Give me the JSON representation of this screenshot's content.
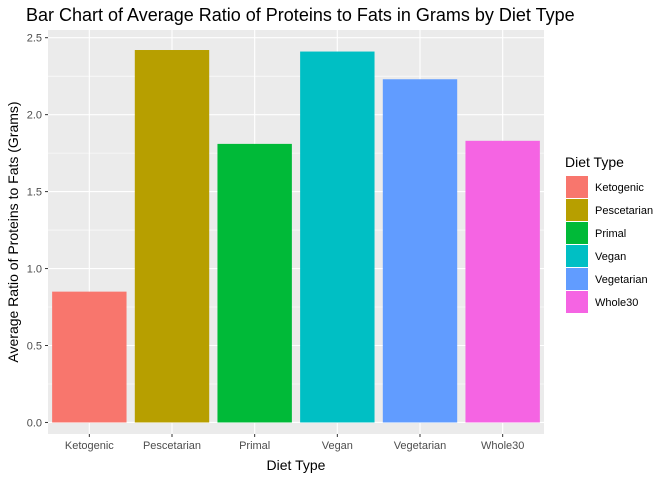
{
  "chart_data": {
    "type": "bar",
    "title": "Bar Chart of Average Ratio of Proteins to Fats in Grams by Diet Type",
    "xlabel": "Diet Type",
    "ylabel": "Average Ratio of Proteins to Fats (Grams)",
    "categories": [
      "Ketogenic",
      "Pescetarian",
      "Primal",
      "Vegan",
      "Vegetarian",
      "Whole30"
    ],
    "values": [
      0.85,
      2.42,
      1.81,
      2.41,
      2.23,
      1.83
    ],
    "colors": [
      "#F8766D",
      "#B79F00",
      "#00BA38",
      "#00BFC4",
      "#619CFF",
      "#F564E3"
    ],
    "ylim": [
      -0.075,
      2.55
    ],
    "yticks": [
      0.0,
      0.5,
      1.0,
      1.5,
      2.0,
      2.5
    ],
    "ytick_labels": [
      "0.0",
      "0.5",
      "1.0",
      "1.5",
      "2.0",
      "2.5"
    ],
    "grid": true,
    "panel_background": "#EBEBEB",
    "legend": {
      "title": "Diet Type",
      "position": "right",
      "entries": [
        "Ketogenic",
        "Pescetarian",
        "Primal",
        "Vegan",
        "Vegetarian",
        "Whole30"
      ]
    }
  }
}
